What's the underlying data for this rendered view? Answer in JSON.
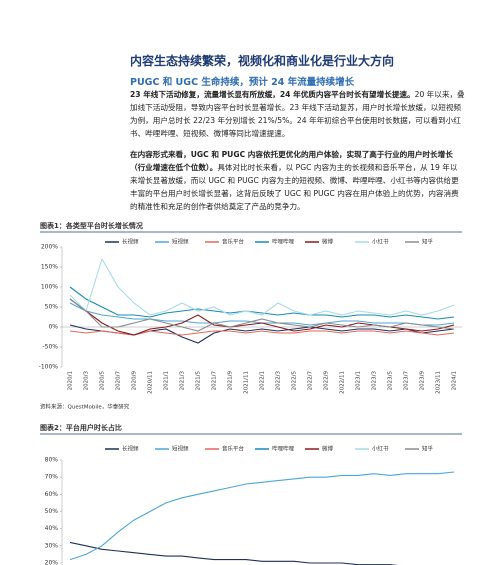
{
  "title": "内容生态持续繁荣，视频化和商业化是行业大方向",
  "subtitle": "PUGC 和 UGC 生命持续，预计 24 年流量持续增长",
  "paragraphs": [
    {
      "bold": "23 年线下活动修复，流量增长显有所放缓，24 年优质内容平台时长有望增长提速。",
      "text": "20 年以来，叠加线下活动受阻，导致内容平台时长显著增长。23 年线下活动复苏，用户时长增长放缓，以短视频为例，用户总时长 22/23 年分别增长 21%/5%。24 年年初综合平台使用时长数据，可以看到小红书、哔哩哔哩、短视频、微博等同比增速提速。"
    },
    {
      "bold": "在内容形式来看，UGC 和 PUGC 内容依托更优化的用户体验，实现了高于行业的用户时长增长（行业增速在低个位数）。",
      "text": "具体对比时长来看，以 PGC 内容为主的长视频和音乐平台，从 19 年以来增长显著放缓，而以 UGC 和 PUGC 内容为主的短视频、微博、哔哩哔哩、小红书等内容供给更丰富的平台用户时长增长显著，这背后反映了 UGC 和 PUGC 内容在用户体验上的优势，内容消费的精准性和充足的创作者供给奠定了产品的竞争力。"
    }
  ],
  "chart_data": [
    {
      "type": "line",
      "title": "图表1：各类型平台时长增长情况",
      "source": "资料来源：QuestMobile，华泰研究",
      "grid": false,
      "categories": [
        "2020/1",
        "2020/3",
        "2020/5",
        "2020/7",
        "2020/9",
        "2020/11",
        "2021/1",
        "2021/3",
        "2021/5",
        "2021/7",
        "2021/9",
        "2021/11",
        "2022/1",
        "2022/3",
        "2022/5",
        "2022/7",
        "2022/9",
        "2022/11",
        "2023/1",
        "2023/3",
        "2023/5",
        "2023/7",
        "2023/9",
        "2023/11",
        "2024/1"
      ],
      "ylim": [
        -100,
        200
      ],
      "yticks": [
        {
          "value": 200,
          "label": "200%"
        },
        {
          "value": 150,
          "label": "150%"
        },
        {
          "value": 100,
          "label": "100%"
        },
        {
          "value": 50,
          "label": "50%"
        },
        {
          "value": 0,
          "label": "0%"
        },
        {
          "value": -50,
          "label": "-50%"
        },
        {
          "value": -100,
          "label": "-100%"
        }
      ],
      "series": [
        {
          "name": "长视频",
          "color": "#1f2f5c",
          "values": [
            5,
            -5,
            -10,
            -15,
            -20,
            -10,
            -5,
            -25,
            -40,
            -15,
            -5,
            -10,
            -5,
            -10,
            -5,
            0,
            -5,
            -10,
            -5,
            -5,
            -10,
            -5,
            -15,
            -10,
            -5
          ]
        },
        {
          "name": "短视频",
          "color": "#4da6d9",
          "values": [
            60,
            40,
            30,
            25,
            20,
            20,
            15,
            15,
            10,
            10,
            15,
            15,
            10,
            10,
            10,
            5,
            10,
            15,
            15,
            10,
            10,
            10,
            5,
            5,
            10
          ]
        },
        {
          "name": "音乐平台",
          "color": "#e8665a",
          "values": [
            -10,
            -15,
            -10,
            -15,
            -20,
            -10,
            -15,
            -20,
            -15,
            -10,
            -10,
            -15,
            -10,
            -15,
            -15,
            -10,
            -10,
            -15,
            -10,
            -10,
            -15,
            -10,
            -15,
            -20,
            -15
          ]
        },
        {
          "name": "哔哩哔哩",
          "color": "#1a8ab4",
          "values": [
            100,
            70,
            50,
            30,
            30,
            25,
            35,
            40,
            45,
            40,
            35,
            40,
            35,
            30,
            35,
            30,
            30,
            25,
            30,
            30,
            25,
            30,
            25,
            20,
            25
          ]
        },
        {
          "name": "微博",
          "color": "#8b1a1a",
          "values": [
            70,
            40,
            10,
            -10,
            -20,
            -5,
            0,
            10,
            30,
            5,
            0,
            5,
            10,
            0,
            -10,
            -5,
            5,
            0,
            10,
            5,
            0,
            -5,
            -10,
            -5,
            5
          ]
        },
        {
          "name": "小红书",
          "color": "#a8dbe8",
          "values": [
            80,
            40,
            170,
            100,
            60,
            30,
            40,
            60,
            40,
            50,
            30,
            40,
            30,
            60,
            40,
            30,
            40,
            30,
            40,
            35,
            30,
            40,
            30,
            40,
            55
          ]
        },
        {
          "name": "知乎",
          "color": "#8c8c8c",
          "values": [
            70,
            40,
            0,
            0,
            10,
            20,
            10,
            0,
            -10,
            10,
            0,
            10,
            20,
            10,
            5,
            0,
            10,
            5,
            0,
            5,
            0,
            10,
            5,
            0,
            -5
          ]
        }
      ]
    },
    {
      "type": "line",
      "title": "图表2：平台用户时长占比",
      "grid": false,
      "ylim": [
        20,
        80
      ],
      "yticks": [
        {
          "value": 80,
          "label": "80%"
        },
        {
          "value": 70,
          "label": "70%"
        },
        {
          "value": 60,
          "label": "60%"
        },
        {
          "value": 50,
          "label": "50%"
        },
        {
          "value": 40,
          "label": "40%"
        },
        {
          "value": 30,
          "label": "30%"
        },
        {
          "value": 20,
          "label": "20%"
        }
      ],
      "series": [
        {
          "name": "长视频",
          "color": "#1f2f5c",
          "values": [
            32,
            30,
            28,
            27,
            26,
            25,
            24,
            24,
            23,
            22,
            22,
            22,
            21,
            21,
            21,
            20,
            20,
            20,
            19,
            19,
            19,
            18,
            18,
            18,
            18
          ]
        },
        {
          "name": "短视频",
          "color": "#4da6d9",
          "values": [
            22,
            25,
            30,
            38,
            45,
            50,
            55,
            58,
            60,
            62,
            64,
            66,
            67,
            68,
            69,
            70,
            70,
            71,
            71,
            72,
            71,
            72,
            72,
            72,
            73
          ]
        },
        {
          "name": "音乐平台",
          "color": "#e8665a",
          "values": [
            null,
            null,
            null,
            null,
            null,
            null,
            null,
            null,
            null,
            null,
            null,
            null,
            null,
            null,
            null,
            null,
            null,
            null,
            null,
            null,
            null,
            null,
            null,
            null,
            null
          ]
        },
        {
          "name": "哔哩哔哩",
          "color": "#1a8ab4",
          "values": [
            null,
            null,
            null,
            null,
            null,
            null,
            null,
            null,
            null,
            null,
            null,
            null,
            null,
            null,
            null,
            null,
            null,
            null,
            null,
            null,
            null,
            null,
            null,
            null,
            null
          ]
        },
        {
          "name": "微博",
          "color": "#8b1a1a",
          "values": [
            null,
            null,
            null,
            null,
            null,
            null,
            null,
            null,
            null,
            null,
            null,
            null,
            null,
            null,
            null,
            null,
            null,
            null,
            null,
            null,
            null,
            null,
            null,
            null,
            null
          ]
        },
        {
          "name": "小红书",
          "color": "#a8dbe8",
          "values": [
            null,
            null,
            null,
            null,
            null,
            null,
            null,
            null,
            null,
            null,
            null,
            null,
            null,
            null,
            null,
            null,
            null,
            null,
            null,
            null,
            null,
            null,
            null,
            null,
            null
          ]
        },
        {
          "name": "知乎",
          "color": "#8c8c8c",
          "values": [
            null,
            null,
            null,
            null,
            null,
            null,
            null,
            null,
            null,
            null,
            null,
            null,
            null,
            null,
            null,
            null,
            null,
            null,
            null,
            null,
            null,
            null,
            null,
            null,
            null
          ]
        }
      ]
    }
  ]
}
